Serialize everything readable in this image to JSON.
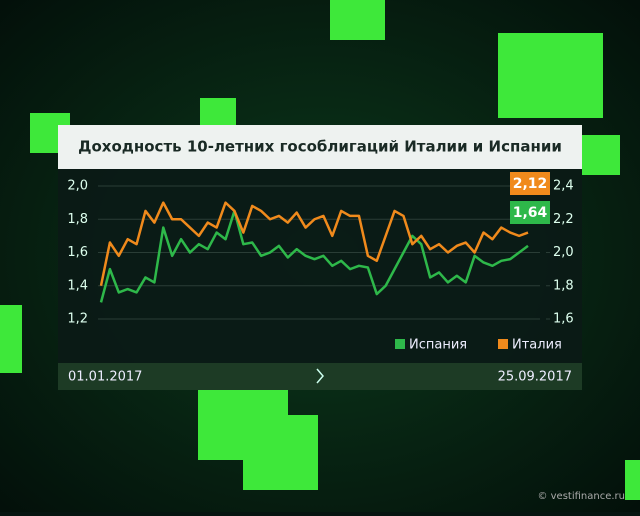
{
  "chart_data": {
    "type": "line",
    "title": "Доходность 10-летних гособлигаций Италии и Испании",
    "categories": [
      "01.01.2017",
      null,
      null,
      null,
      null,
      null,
      null,
      null,
      null,
      null,
      null,
      null,
      null,
      null,
      null,
      null,
      null,
      null,
      null,
      null,
      null,
      null,
      null,
      null,
      null,
      null,
      null,
      null,
      null,
      null,
      null,
      null,
      null,
      null,
      null,
      null,
      null,
      null,
      null,
      null,
      null,
      null,
      null,
      null,
      null,
      null,
      null,
      null,
      "25.09.2017"
    ],
    "ylim": [
      1.2,
      2.0
    ],
    "yticks": [
      {
        "value": 1.2,
        "label": "1,2"
      },
      {
        "value": 1.4,
        "label": "1,4"
      },
      {
        "value": 1.6,
        "label": "1,6"
      },
      {
        "value": 1.8,
        "label": "1,8"
      },
      {
        "value": 2.0,
        "label": "2,0"
      }
    ],
    "y2lim": [
      1.6,
      2.4
    ],
    "y2ticks": [
      {
        "value": 1.6,
        "label": "1,6"
      },
      {
        "value": 1.8,
        "label": "1,8"
      },
      {
        "value": 2.0,
        "label": "2,0"
      },
      {
        "value": 2.2,
        "label": "2,2"
      },
      {
        "value": 2.4,
        "label": "2,4"
      }
    ],
    "legend": "bottom-right",
    "series": [
      {
        "name": "Испания",
        "color": "#2eb84a",
        "values": [
          1.3,
          1.5,
          1.36,
          1.38,
          1.36,
          1.45,
          1.42,
          1.75,
          1.58,
          1.68,
          1.6,
          1.65,
          1.62,
          1.72,
          1.68,
          1.85,
          1.65,
          1.66,
          1.58,
          1.6,
          1.64,
          1.57,
          1.62,
          1.58,
          1.56,
          1.58,
          1.52,
          1.55,
          1.5,
          1.52,
          1.51,
          1.35,
          1.4,
          1.5,
          1.6,
          1.7,
          1.65,
          1.45,
          1.48,
          1.42,
          1.46,
          1.42,
          1.58,
          1.54,
          1.52,
          1.55,
          1.56,
          1.6,
          1.64
        ],
        "value_labels": [
          null,
          null,
          null,
          null,
          null,
          null,
          null,
          null,
          null,
          null,
          null,
          null,
          null,
          null,
          null,
          null,
          null,
          null,
          null,
          null,
          null,
          null,
          null,
          null,
          null,
          null,
          null,
          null,
          null,
          null,
          null,
          null,
          null,
          null,
          null,
          null,
          null,
          null,
          null,
          null,
          null,
          null,
          null,
          null,
          null,
          null,
          null,
          null,
          "1,64"
        ]
      },
      {
        "name": "Италия",
        "color": "#f08a1c",
        "axis": "y2",
        "values": [
          1.8,
          2.06,
          1.98,
          2.08,
          2.05,
          2.25,
          2.18,
          2.3,
          2.2,
          2.2,
          2.15,
          2.1,
          2.18,
          2.15,
          2.3,
          2.25,
          2.12,
          2.28,
          2.25,
          2.2,
          2.22,
          2.18,
          2.24,
          2.15,
          2.2,
          2.22,
          2.1,
          2.25,
          2.22,
          2.22,
          1.98,
          1.95,
          2.1,
          2.25,
          2.22,
          2.05,
          2.1,
          2.02,
          2.05,
          2.0,
          2.04,
          2.06,
          2.0,
          2.12,
          2.08,
          2.15,
          2.12,
          2.1,
          2.12
        ],
        "value_labels": [
          null,
          null,
          null,
          null,
          null,
          null,
          null,
          null,
          null,
          null,
          null,
          null,
          null,
          null,
          null,
          null,
          null,
          null,
          null,
          null,
          null,
          null,
          null,
          null,
          null,
          null,
          null,
          null,
          null,
          null,
          null,
          null,
          null,
          null,
          null,
          null,
          null,
          null,
          null,
          null,
          null,
          null,
          null,
          null,
          null,
          null,
          null,
          null,
          "2,12"
        ]
      }
    ],
    "watermark": "© vestifinance.ru"
  }
}
